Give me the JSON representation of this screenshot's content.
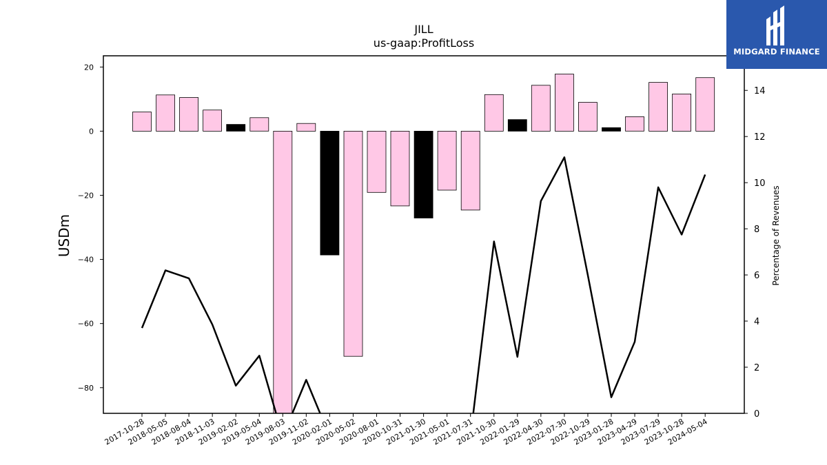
{
  "chart_data": {
    "type": "bar+line",
    "title": "JILL",
    "subtitle": "us-gaap:ProfitLoss",
    "ylabel": "USDm",
    "y2label": "Percentage of Revenues",
    "ylim": [
      -88,
      23.5
    ],
    "y2lim": [
      0,
      15.5
    ],
    "yticks": [
      20,
      0,
      -20,
      -40,
      -60,
      -80
    ],
    "y2ticks": [
      0,
      2,
      4,
      6,
      8,
      10,
      12,
      14
    ],
    "categories": [
      "2017-10-28",
      "2018-05-05",
      "2018-08-04",
      "2018-11-03",
      "2019-02-02",
      "2019-05-04",
      "2019-08-03",
      "2019-11-02",
      "2020-02-01",
      "2020-05-02",
      "2020-08-01",
      "2020-10-31",
      "2021-01-30",
      "2021-05-01",
      "2021-07-31",
      "2021-10-30",
      "2022-01-29",
      "2022-04-30",
      "2022-07-30",
      "2022-10-29",
      "2023-01-28",
      "2023-04-29",
      "2023-07-29",
      "2023-10-28",
      "2024-05-04"
    ],
    "bars": [
      {
        "value": 6.0,
        "color": "#ffc8e6"
      },
      {
        "value": 11.3,
        "color": "#ffc8e6"
      },
      {
        "value": 10.5,
        "color": "#ffc8e6"
      },
      {
        "value": 6.6,
        "color": "#ffc8e6"
      },
      {
        "value": 2.1,
        "color": "#000000"
      },
      {
        "value": 4.2,
        "color": "#ffc8e6"
      },
      {
        "value": -88,
        "color": "#ffc8e6"
      },
      {
        "value": 2.4,
        "color": "#ffc8e6"
      },
      {
        "value": -38.6,
        "color": "#000000"
      },
      {
        "value": -70.2,
        "color": "#ffc8e6"
      },
      {
        "value": -19.1,
        "color": "#ffc8e6"
      },
      {
        "value": -23.3,
        "color": "#ffc8e6"
      },
      {
        "value": -27.1,
        "color": "#000000"
      },
      {
        "value": -18.4,
        "color": "#ffc8e6"
      },
      {
        "value": -24.6,
        "color": "#ffc8e6"
      },
      {
        "value": 11.4,
        "color": "#ffc8e6"
      },
      {
        "value": 3.6,
        "color": "#000000"
      },
      {
        "value": 14.3,
        "color": "#ffc8e6"
      },
      {
        "value": 17.8,
        "color": "#ffc8e6"
      },
      {
        "value": 9.0,
        "color": "#ffc8e6"
      },
      {
        "value": 1.1,
        "color": "#000000"
      },
      {
        "value": 4.5,
        "color": "#ffc8e6"
      },
      {
        "value": 15.2,
        "color": "#ffc8e6"
      },
      {
        "value": 11.6,
        "color": "#ffc8e6"
      },
      {
        "value": 16.7,
        "color": "#ffc8e6"
      }
    ],
    "line": {
      "color": "#000000",
      "values": [
        3.7,
        6.2,
        5.85,
        3.85,
        1.2,
        2.5,
        -1,
        1.45,
        -1,
        -1,
        -1,
        -1,
        -1,
        -1,
        -1,
        7.45,
        2.45,
        9.2,
        11.1,
        6.0,
        0.7,
        3.1,
        9.8,
        7.75,
        10.35
      ]
    },
    "grid": false,
    "legend": "none"
  },
  "logo": {
    "text": "MIDGARD FINANCE",
    "background": "#2a58ad",
    "icon": "midgard-logo-icon"
  }
}
